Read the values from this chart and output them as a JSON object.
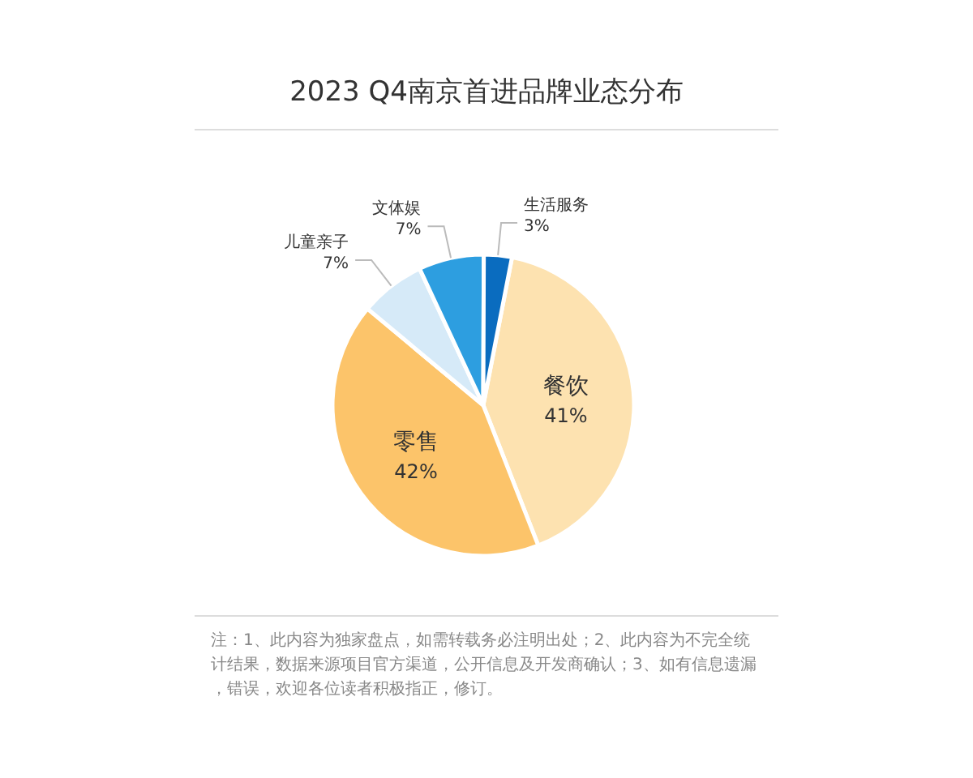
{
  "chart_data": {
    "type": "pie",
    "title": "2023 Q4南京首进品牌业态分布",
    "categories": [
      "餐饮",
      "零售",
      "儿童亲子",
      "文体娱",
      "生活服务"
    ],
    "values": [
      41,
      42,
      7,
      7,
      3
    ],
    "colors": [
      "#fde2b0",
      "#fcc46a",
      "#d6eaf8",
      "#2d9ee0",
      "#0a6cbf"
    ],
    "value_labels": [
      "41%",
      "42%",
      "7%",
      "7%",
      "3%"
    ],
    "annotations": [
      "注：1、此内容为独家盘点，如需转载务必注明出处；2、此内容为不完全统计结果，数据来源项目官方渠道，公开信息及开发商确认；3、如有信息遗漏，错误，欢迎各位读者积极指正，修订。"
    ]
  }
}
